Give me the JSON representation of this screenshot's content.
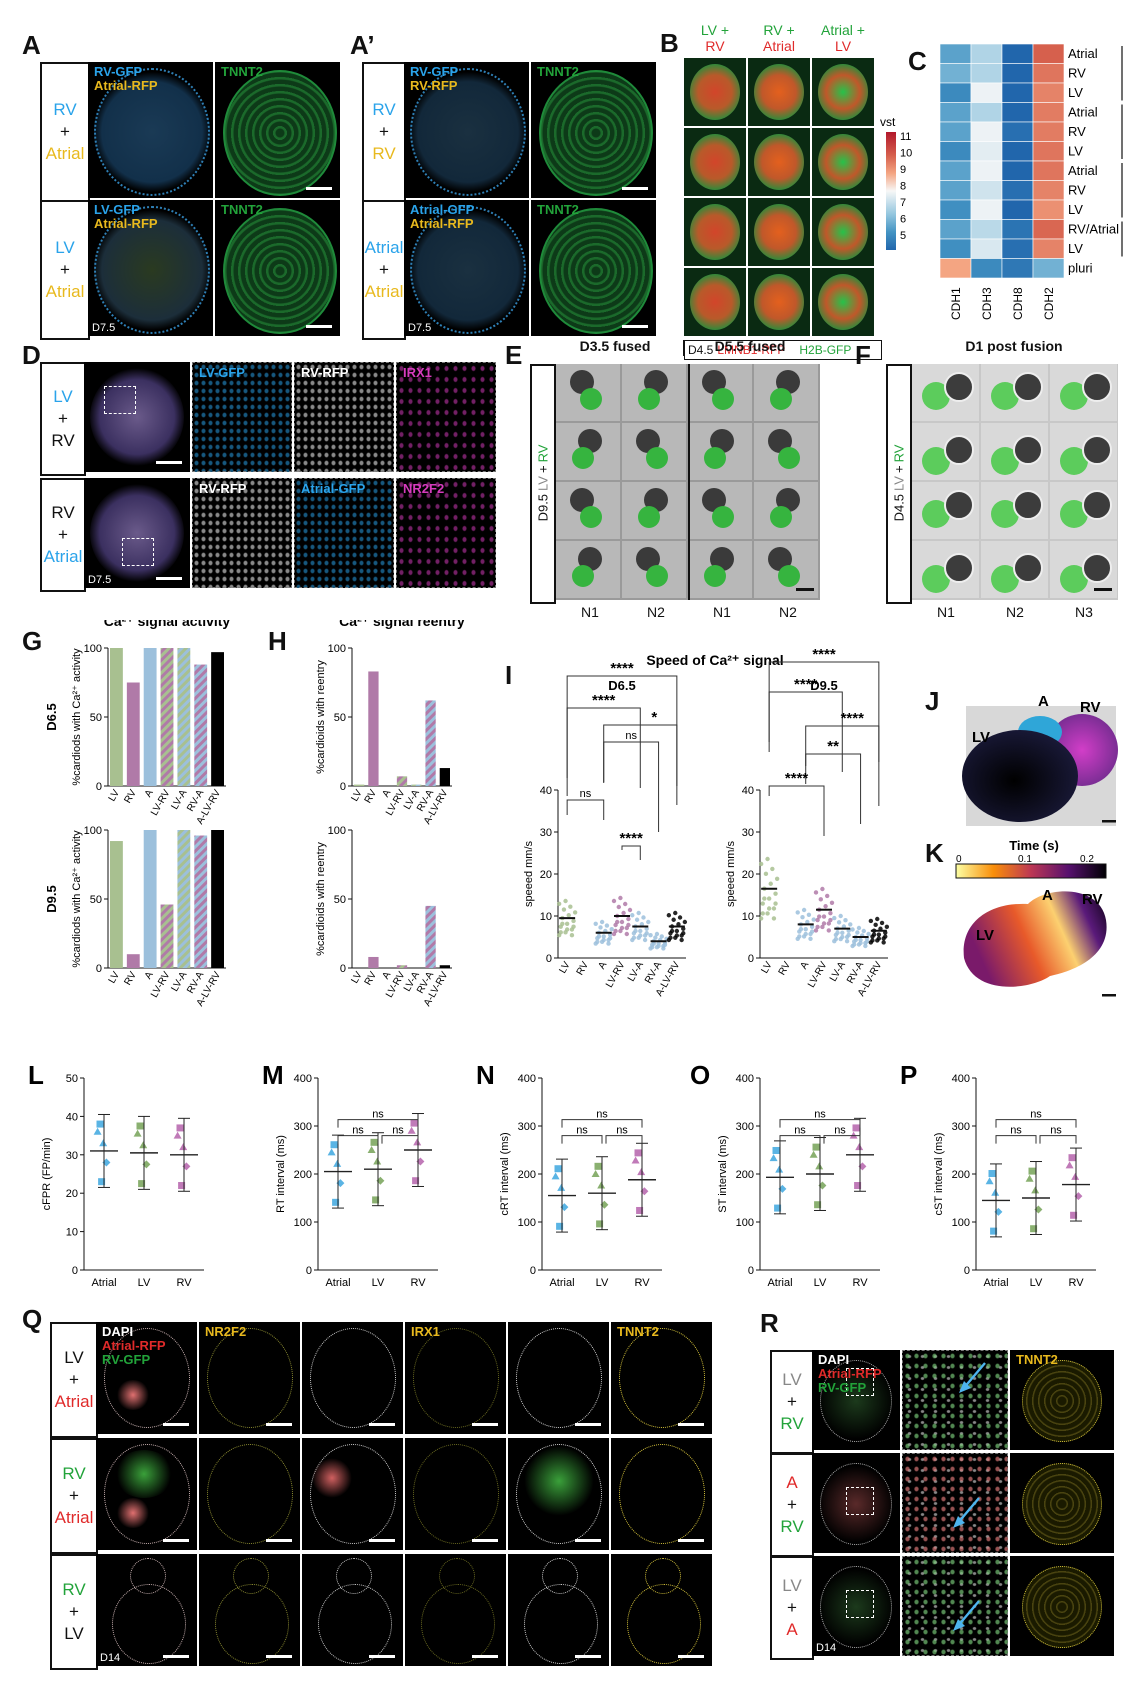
{
  "panels": {
    "A": {
      "label": "A",
      "rows": [
        {
          "side": [
            "RV",
            "+",
            "Atrial"
          ],
          "side_colors": [
            "#2aa3ea",
            "#111",
            "#e8b91e"
          ],
          "ch1": "RV-GFP",
          "ch2": "Atrial-RFP",
          "right": "TNNT2"
        },
        {
          "side": [
            "LV",
            "+",
            "Atrial"
          ],
          "side_colors": [
            "#2aa3ea",
            "#111",
            "#e8b91e"
          ],
          "ch1": "LV-GFP",
          "ch2": "Atrial-RFP",
          "right": "TNNT2",
          "stamp": "D7.5"
        }
      ]
    },
    "A2": {
      "label": "A’",
      "rows": [
        {
          "side": [
            "RV",
            "+",
            "RV"
          ],
          "side_colors": [
            "#2aa3ea",
            "#111",
            "#e8b91e"
          ],
          "ch1": "RV-GFP",
          "ch2": "RV-RFP",
          "right": "TNNT2"
        },
        {
          "side": [
            "Atrial",
            "+",
            "Atrial"
          ],
          "side_colors": [
            "#2aa3ea",
            "#111",
            "#e8b91e"
          ],
          "ch1": "Atrial-GFP",
          "ch2": "Atrial-RFP",
          "right": "TNNT2",
          "stamp": "D7.5"
        }
      ]
    },
    "B": {
      "label": "B",
      "cols": [
        {
          "top": "LV +",
          "top_color": "#22a33a",
          "bottom": "RV",
          "bottom_color": "#e02a2a"
        },
        {
          "top": "RV +",
          "top_color": "#22a33a",
          "bottom": "Atrial",
          "bottom_color": "#e02a2a"
        },
        {
          "top": "Atrial +",
          "top_color": "#22a33a",
          "bottom": "LV",
          "bottom_color": "#e02a2a"
        }
      ],
      "footer_day": "D4.5",
      "footer_red": "LMNB1-RFP",
      "footer_green": "H2B-GFP"
    },
    "C": {
      "label": "C",
      "legend_title": "vst",
      "legend_ticks": [
        "11",
        "10",
        "9",
        "8",
        "7",
        "6",
        "5"
      ],
      "rows": [
        "Atrial",
        "RV",
        "LV",
        "Atrial",
        "RV",
        "LV",
        "Atrial",
        "RV",
        "LV",
        "RV/Atrial",
        "LV",
        "pluri"
      ],
      "cols": [
        "CDH1",
        "CDH3",
        "CDH8",
        "CDH2"
      ],
      "values": [
        [
          6.3,
          7.3,
          5.0,
          10.5
        ],
        [
          6.6,
          7.3,
          5.0,
          10.2
        ],
        [
          5.8,
          7.9,
          5.0,
          10.0
        ],
        [
          6.3,
          7.3,
          5.0,
          10.1
        ],
        [
          6.3,
          7.9,
          5.2,
          10.1
        ],
        [
          5.8,
          7.8,
          5.0,
          10.2
        ],
        [
          6.3,
          7.9,
          5.0,
          10.2
        ],
        [
          6.3,
          7.6,
          5.2,
          10.0
        ],
        [
          5.9,
          7.9,
          5.0,
          9.8
        ],
        [
          6.3,
          7.4,
          5.3,
          10.4
        ],
        [
          5.9,
          7.7,
          5.2,
          10.0
        ],
        [
          9.5,
          5.8,
          5.4,
          6.6
        ]
      ]
    },
    "D": {
      "label": "D",
      "rows": [
        {
          "side": [
            "LV",
            "+",
            "RV"
          ],
          "side_colors": [
            "#2aa3ea",
            "#111",
            "#111"
          ],
          "c1": "LV-GFP",
          "c1col": "#2aa3ea",
          "c2": "RV-RFP",
          "c2col": "#ffffff",
          "c3": "IRX1",
          "c3col": "#d63bbd"
        },
        {
          "side": [
            "RV",
            "+",
            "Atrial"
          ],
          "side_colors": [
            "#111",
            "#111",
            "#2aa3ea"
          ],
          "c1": "RV-RFP",
          "c1col": "#ffffff",
          "c2": "Atrial-GFP",
          "c2col": "#2aa3ea",
          "c3": "NR2F2",
          "c3col": "#d63bbd",
          "stamp": "D7.5"
        }
      ]
    },
    "E": {
      "label": "E",
      "col_titles": [
        "D3.5 fused",
        "D5.5 fused"
      ],
      "side": "D9.5",
      "side_lv": "LV",
      "side_plus": "+",
      "side_rv": "RV",
      "xlabels": [
        "N1",
        "N2",
        "N1",
        "N2"
      ]
    },
    "F": {
      "label": "F",
      "title": "D1 post fusion",
      "side": "D4.5",
      "side_lv": "LV",
      "side_plus": "+",
      "side_rv": "RV",
      "xlabels": [
        "N1",
        "N2",
        "N3"
      ]
    },
    "G": {
      "label": "G",
      "title": "Ca²⁺ signal activity",
      "ylabel": "%cardiods with Ca²⁺ activity",
      "days": [
        "D6.5",
        "D9.5"
      ]
    },
    "H": {
      "label": "H",
      "title": "Ca²⁺ signal reentry",
      "ylabel": "%cardioids with reentry"
    },
    "I": {
      "label": "I",
      "title": "Speed of Ca²⁺ signal",
      "sub": [
        "D6.5",
        "D9.5"
      ],
      "ylabel": "speeed mm/s"
    },
    "J": {
      "label": "J",
      "lv": "LV",
      "a": "A",
      "rv": "RV"
    },
    "K": {
      "label": "K",
      "cb_title": "Time (s)",
      "cb_ticks": [
        "0",
        "0.1",
        "0.2"
      ],
      "lv": "LV",
      "a": "A",
      "rv": "RV"
    },
    "L": {
      "label": "L",
      "ylabel": "cFPR (FP/min)"
    },
    "M": {
      "label": "M",
      "ylabel": "RT interval (ms)"
    },
    "N": {
      "label": "N",
      "ylabel": "cRT interval (ms)"
    },
    "O": {
      "label": "O",
      "ylabel": "ST interval (ms)"
    },
    "P": {
      "label": "P",
      "ylabel": "cST interval (ms)"
    },
    "Q": {
      "label": "Q",
      "rows": [
        {
          "side": [
            "LV",
            "+",
            "Atrial"
          ],
          "side_colors": [
            "#111",
            "#111",
            "#e02a2a"
          ]
        },
        {
          "side": [
            "RV",
            "+",
            "Atrial"
          ],
          "side_colors": [
            "#22a33a",
            "#111",
            "#e02a2a"
          ]
        },
        {
          "side": [
            "RV",
            "+",
            "LV"
          ],
          "side_colors": [
            "#22a33a",
            "#111",
            "#111"
          ],
          "stamp": "D14"
        }
      ],
      "h1": "DAPI",
      "h2": "Atrial-RFP",
      "h3": "RV-GFP",
      "m1": "NR2F2",
      "m2": "IRX1",
      "m3": "TNNT2"
    },
    "R": {
      "label": "R",
      "rows": [
        {
          "side": [
            "LV",
            "+",
            "RV"
          ],
          "side_colors": [
            "#888",
            "#111",
            "#22a33a"
          ]
        },
        {
          "side": [
            "A",
            "+",
            "RV"
          ],
          "side_colors": [
            "#e02a2a",
            "#111",
            "#22a33a"
          ]
        },
        {
          "side": [
            "LV",
            "+",
            "A"
          ],
          "side_colors": [
            "#888",
            "#111",
            "#e02a2a"
          ],
          "stamp": "D14"
        }
      ],
      "h1": "DAPI",
      "h2": "Atrial-RFP",
      "h3": "RV-GFP",
      "right": "TNNT2"
    }
  },
  "chart_data": [
    {
      "type": "bar",
      "id": "G-D6.5",
      "title": "Ca²⁺ signal activity",
      "ylabel": "%cardiods with Ca²⁺ activity",
      "categories": [
        "LV",
        "RV",
        "A",
        "LV-RV",
        "LV-A",
        "RV-A",
        "A-LV-RV"
      ],
      "values": [
        100,
        75,
        100,
        100,
        100,
        88,
        97
      ],
      "ylim": [
        0,
        100
      ],
      "yticks": [
        "0",
        "50",
        "100"
      ]
    },
    {
      "type": "bar",
      "id": "G-D9.5",
      "ylabel": "%cardiods with Ca²⁺ activity",
      "categories": [
        "LV",
        "RV",
        "A",
        "LV-RV",
        "LV-A",
        "RV-A",
        "A-LV-RV"
      ],
      "values": [
        92,
        10,
        100,
        46,
        100,
        96,
        100
      ],
      "ylim": [
        0,
        100
      ],
      "yticks": [
        "0",
        "50",
        "100"
      ]
    },
    {
      "type": "bar",
      "id": "H-D6.5",
      "title": "Ca²⁺ signal reentry",
      "ylabel": "%cardioids with reentry",
      "categories": [
        "LV",
        "RV",
        "A",
        "LV-RV",
        "LV-A",
        "RV-A",
        "A-LV-RV"
      ],
      "values": [
        1,
        83,
        0,
        7,
        1,
        62,
        13
      ],
      "ylim": [
        0,
        100
      ],
      "yticks": [
        "0",
        "50",
        "100"
      ]
    },
    {
      "type": "bar",
      "id": "H-D9.5",
      "ylabel": "%cardioids with reentry",
      "categories": [
        "LV",
        "RV",
        "A",
        "LV-RV",
        "LV-A",
        "RV-A",
        "A-LV-RV"
      ],
      "values": [
        0,
        8,
        0,
        2,
        0,
        45,
        2
      ],
      "ylim": [
        0,
        100
      ],
      "yticks": [
        "0",
        "50",
        "100"
      ]
    },
    {
      "type": "scatter",
      "id": "I-D6.5",
      "title": "D6.5",
      "ylabel": "speeed mm/s",
      "categories": [
        "LV",
        "RV",
        "A",
        "LV-RV",
        "LV-A",
        "RV-A",
        "A-LV-RV"
      ],
      "values": [
        9.5,
        null,
        6.0,
        10.0,
        7.5,
        4.0,
        7.5
      ],
      "ylim": [
        0,
        40
      ],
      "yticks": [
        "0",
        "10",
        "20",
        "30",
        "40"
      ],
      "significance": [
        "ns",
        "****",
        "ns",
        "****",
        "*",
        "****"
      ]
    },
    {
      "type": "scatter",
      "id": "I-D9.5",
      "title": "D9.5",
      "ylabel": "speeed mm/s",
      "categories": [
        "LV",
        "RV",
        "A",
        "LV-RV",
        "LV-A",
        "RV-A",
        "A-LV-RV"
      ],
      "values": [
        16.5,
        null,
        8.0,
        11.5,
        7.0,
        5.0,
        6.5
      ],
      "ylim": [
        0,
        40
      ],
      "yticks": [
        "0",
        "10",
        "20",
        "30",
        "40"
      ],
      "significance": [
        "****",
        "****",
        "****",
        "**",
        "****"
      ]
    },
    {
      "type": "scatter",
      "id": "L",
      "ylabel": "cFPR (FP/min)",
      "categories": [
        "Atrial",
        "LV",
        "RV"
      ],
      "values": [
        31,
        30.5,
        30
      ],
      "ylim": [
        0,
        50
      ],
      "yticks": [
        "0",
        "10",
        "20",
        "30",
        "40",
        "50"
      ]
    },
    {
      "type": "scatter",
      "id": "M",
      "ylabel": "RT interval (ms)",
      "categories": [
        "Atrial",
        "LV",
        "RV"
      ],
      "values": [
        205,
        210,
        250
      ],
      "ylim": [
        0,
        400
      ],
      "yticks": [
        "0",
        "100",
        "200",
        "300",
        "400"
      ],
      "significance": [
        "ns",
        "ns",
        "ns"
      ]
    },
    {
      "type": "scatter",
      "id": "N",
      "ylabel": "cRT interval (ms)",
      "categories": [
        "Atrial",
        "LV",
        "RV"
      ],
      "values": [
        155,
        160,
        188
      ],
      "ylim": [
        0,
        400
      ],
      "yticks": [
        "0",
        "100",
        "200",
        "300",
        "400"
      ],
      "significance": [
        "ns",
        "ns",
        "ns"
      ]
    },
    {
      "type": "scatter",
      "id": "O",
      "ylabel": "ST interval (ms)",
      "categories": [
        "Atrial",
        "LV",
        "RV"
      ],
      "values": [
        193,
        200,
        240
      ],
      "ylim": [
        0,
        400
      ],
      "yticks": [
        "0",
        "100",
        "200",
        "300",
        "400"
      ],
      "significance": [
        "ns",
        "ns",
        "ns"
      ]
    },
    {
      "type": "scatter",
      "id": "P",
      "ylabel": "cST interval (ms)",
      "categories": [
        "Atrial",
        "LV",
        "RV"
      ],
      "values": [
        145,
        150,
        178
      ],
      "ylim": [
        0,
        400
      ],
      "yticks": [
        "0",
        "100",
        "200",
        "300",
        "400"
      ],
      "significance": [
        "ns",
        "ns",
        "ns"
      ]
    }
  ]
}
